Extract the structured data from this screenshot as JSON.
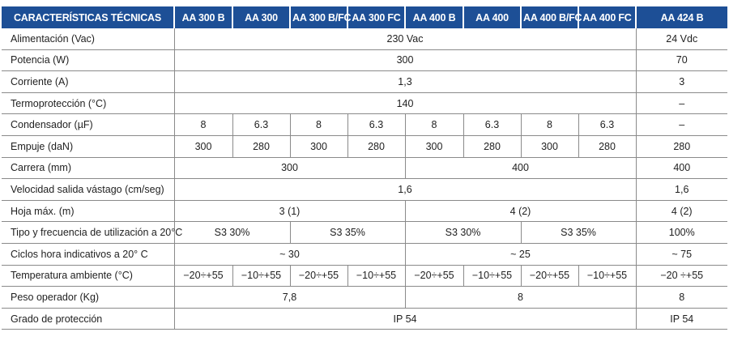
{
  "table": {
    "headers": [
      "CARACTERÍSTICAS TÉCNICAS",
      "AA 300 B",
      "AA 300",
      "AA 300 B/FC",
      "AA 300 FC",
      "AA 400 B",
      "AA 400",
      "AA 400 B/FC",
      "AA 400 FC",
      "AA 424 B"
    ],
    "rows": [
      {
        "label": "Alimentación (Vac)",
        "cells": [
          {
            "v": "230 Vac",
            "span": 8
          },
          {
            "v": "24 Vdc",
            "span": 1
          }
        ]
      },
      {
        "label": "Potencia (W)",
        "cells": [
          {
            "v": "300",
            "span": 8
          },
          {
            "v": "70",
            "span": 1
          }
        ]
      },
      {
        "label": "Corriente (A)",
        "cells": [
          {
            "v": "1,3",
            "span": 8
          },
          {
            "v": "3",
            "span": 1
          }
        ]
      },
      {
        "label": "Termoprotección (°C)",
        "cells": [
          {
            "v": "140",
            "span": 8
          },
          {
            "v": "–",
            "span": 1
          }
        ]
      },
      {
        "label": "Condensador (µF)",
        "cells": [
          {
            "v": "8",
            "span": 1
          },
          {
            "v": "6.3",
            "span": 1
          },
          {
            "v": "8",
            "span": 1
          },
          {
            "v": "6.3",
            "span": 1
          },
          {
            "v": "8",
            "span": 1
          },
          {
            "v": "6.3",
            "span": 1
          },
          {
            "v": "8",
            "span": 1
          },
          {
            "v": "6.3",
            "span": 1
          },
          {
            "v": "–",
            "span": 1
          }
        ]
      },
      {
        "label": "Empuje (daN)",
        "cells": [
          {
            "v": "300",
            "span": 1
          },
          {
            "v": "280",
            "span": 1
          },
          {
            "v": "300",
            "span": 1
          },
          {
            "v": "280",
            "span": 1
          },
          {
            "v": "300",
            "span": 1
          },
          {
            "v": "280",
            "span": 1
          },
          {
            "v": "300",
            "span": 1
          },
          {
            "v": "280",
            "span": 1
          },
          {
            "v": "280",
            "span": 1
          }
        ]
      },
      {
        "label": "Carrera (mm)",
        "cells": [
          {
            "v": "300",
            "span": 4
          },
          {
            "v": "400",
            "span": 4
          },
          {
            "v": "400",
            "span": 1
          }
        ]
      },
      {
        "label": "Velocidad salida vástago (cm/seg)",
        "cells": [
          {
            "v": "1,6",
            "span": 8
          },
          {
            "v": "1,6",
            "span": 1
          }
        ]
      },
      {
        "label": "Hoja máx. (m)",
        "cells": [
          {
            "v": "3 (1)",
            "span": 4
          },
          {
            "v": "4 (2)",
            "span": 4
          },
          {
            "v": "4 (2)",
            "span": 1
          }
        ]
      },
      {
        "label": "Tipo y frecuencia de utilización a 20°C",
        "cells": [
          {
            "v": "S3 30%",
            "span": 2
          },
          {
            "v": "S3 35%",
            "span": 2
          },
          {
            "v": "S3 30%",
            "span": 2
          },
          {
            "v": "S3 35%",
            "span": 2
          },
          {
            "v": "100%",
            "span": 1
          }
        ]
      },
      {
        "label": "Ciclos hora indicativos a 20° C",
        "cells": [
          {
            "v": "~ 30",
            "span": 4
          },
          {
            "v": "~ 25",
            "span": 4
          },
          {
            "v": "~ 75",
            "span": 1
          }
        ]
      },
      {
        "label": "Temperatura ambiente (°C)",
        "cells": [
          {
            "v": "−20÷+55",
            "span": 1
          },
          {
            "v": "−10÷+55",
            "span": 1
          },
          {
            "v": "−20÷+55",
            "span": 1
          },
          {
            "v": "−10÷+55",
            "span": 1
          },
          {
            "v": "−20÷+55",
            "span": 1
          },
          {
            "v": "−10÷+55",
            "span": 1
          },
          {
            "v": "−20÷+55",
            "span": 1
          },
          {
            "v": "−10÷+55",
            "span": 1
          },
          {
            "v": "−20 ÷+55",
            "span": 1
          }
        ]
      },
      {
        "label": "Peso operador (Kg)",
        "cells": [
          {
            "v": "7,8",
            "span": 4
          },
          {
            "v": "8",
            "span": 4
          },
          {
            "v": "8",
            "span": 1
          }
        ]
      },
      {
        "label": "Grado de protección",
        "cells": [
          {
            "v": "IP 54",
            "span": 8
          },
          {
            "v": "IP 54",
            "span": 1
          }
        ]
      }
    ]
  },
  "colors": {
    "header_bg": "#1d4f96",
    "header_text": "#ffffff",
    "rule": "#8a8a8a",
    "text": "#1f1f1f"
  }
}
